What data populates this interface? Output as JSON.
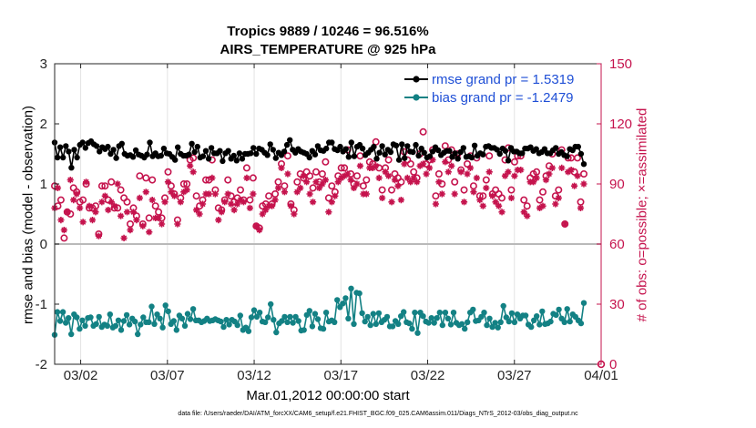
{
  "chart_data": {
    "type": "line",
    "title_line1": "Tropics 9889 / 10246 = 96.516%",
    "title_line2": "AIRS_TEMPERATURE @ 925 hPa",
    "xlabel": "Mar.01,2012 00:00:00 start",
    "ylabel_left": "rmse and bias (model - observation)",
    "ylabel_right": "# of obs: o=possible; ×=assimilated",
    "footnote": "data file: /Users/raeder/DAI/ATM_forcXX/CAM6_setup/f.e21.FHIST_BGC.f09_025.CAM6assim.011/Diags_NTrS_2012-03/obs_diag_output.nc",
    "x_range": [
      0.5,
      31.0
    ],
    "ylim_left": [
      -2,
      3
    ],
    "ylim_right": [
      0,
      150
    ],
    "x_tick_positions": [
      2,
      7,
      12,
      17,
      22,
      27,
      32
    ],
    "x_tick_labels": [
      "03/02",
      "03/07",
      "03/12",
      "03/17",
      "03/22",
      "03/27",
      "04/01"
    ],
    "y_left_ticks": [
      "-2",
      "-1",
      "0",
      "1",
      "2",
      "3"
    ],
    "y_right_ticks": [
      "0",
      "30",
      "60",
      "90",
      "120",
      "150"
    ],
    "legend": [
      {
        "label": "rmse grand pr = 1.5319",
        "color": "#000000"
      },
      {
        "label": "bias grand pr = -1.2479",
        "color": "#138184"
      }
    ],
    "legend_placement": "top-right",
    "colors": {
      "rmse": "#000000",
      "bias": "#138184",
      "obs": "#c5134d",
      "zero_line": "#b9b9b9",
      "legend_text": "#1f4fd6"
    },
    "series": [
      {
        "name": "rmse",
        "values": [
          1.69,
          1.44,
          1.61,
          1.44,
          1.63,
          1.54,
          1.27,
          1.57,
          1.44,
          1.65,
          1.69,
          1.6,
          1.68,
          1.71,
          1.66,
          1.63,
          1.54,
          1.61,
          1.58,
          1.62,
          1.5,
          1.57,
          1.43,
          1.63,
          1.67,
          1.5,
          1.47,
          1.48,
          1.45,
          1.56,
          1.49,
          1.47,
          1.44,
          1.49,
          1.69,
          1.46,
          1.51,
          1.46,
          1.47,
          1.59,
          1.51,
          1.5,
          1.45,
          1.4,
          1.61,
          1.5,
          1.47,
          1.47,
          1.49,
          1.67,
          1.53,
          1.62,
          1.44,
          1.46,
          1.55,
          1.42,
          1.6,
          1.51,
          1.51,
          1.55,
          1.38,
          1.51,
          1.55,
          1.42,
          1.47,
          1.39,
          1.51,
          1.42,
          1.5,
          1.5,
          1.51,
          1.6,
          1.5,
          1.59,
          1.57,
          1.52,
          1.48,
          1.66,
          1.57,
          1.43,
          1.52,
          1.48,
          1.54,
          1.65,
          1.73,
          1.57,
          1.52,
          1.58,
          1.54,
          1.52,
          1.5,
          1.44,
          1.55,
          1.49,
          1.63,
          1.56,
          1.55,
          1.59,
          1.69,
          1.69,
          1.58,
          1.56,
          1.62,
          1.54,
          1.58,
          1.45,
          1.69,
          1.46,
          1.62,
          1.65,
          1.59,
          1.48,
          1.52,
          1.57,
          1.62,
          1.42,
          1.52,
          1.63,
          1.49,
          1.57,
          1.53,
          1.66,
          1.64,
          1.4,
          1.66,
          1.43,
          1.63,
          1.54,
          1.53,
          1.65,
          1.47,
          1.59,
          1.52,
          1.44,
          1.46,
          1.54,
          1.61,
          1.56,
          1.48,
          1.52,
          1.55,
          1.55,
          1.45,
          1.51,
          1.42,
          1.53,
          1.6,
          1.45,
          1.46,
          1.44,
          1.64,
          1.47,
          1.51,
          1.49,
          1.62,
          1.63,
          1.6,
          1.6,
          1.57,
          1.5,
          1.59,
          1.55,
          1.39,
          1.6,
          1.54,
          1.54,
          1.51,
          1.51,
          1.59,
          1.59,
          1.61,
          1.55,
          1.58,
          1.51,
          1.53,
          1.58,
          1.51,
          1.51,
          1.56,
          1.6,
          1.5,
          1.53,
          1.48,
          1.46,
          1.58,
          1.56,
          1.62,
          1.62,
          1.5,
          1.33
        ]
      },
      {
        "name": "bias",
        "values": [
          -1.51,
          -1.13,
          -1.28,
          -1.13,
          -1.31,
          -1.23,
          -1.5,
          -1.17,
          -1.22,
          -1.41,
          -1.27,
          -1.36,
          -1.23,
          -1.22,
          -1.36,
          -1.33,
          -1.21,
          -1.38,
          -1.34,
          -1.36,
          -1.17,
          -1.39,
          -1.36,
          -1.27,
          -1.43,
          -1.28,
          -1.18,
          -1.34,
          -1.24,
          -1.29,
          -1.5,
          -1.34,
          -1.22,
          -1.3,
          -1.3,
          -1.04,
          -1.33,
          -1.17,
          -1.24,
          -1.39,
          -1.02,
          -1.12,
          -1.33,
          -1.28,
          -1.43,
          -1.19,
          -1.24,
          -1.36,
          -1.16,
          -1.25,
          -1.08,
          -1.27,
          -1.27,
          -1.3,
          -1.28,
          -1.24,
          -1.28,
          -1.27,
          -1.25,
          -1.27,
          -1.29,
          -1.38,
          -1.26,
          -1.34,
          -1.26,
          -1.29,
          -1.35,
          -1.19,
          -1.43,
          -1.39,
          -1.45,
          -1.22,
          -1.1,
          -1.21,
          -1.14,
          -1.29,
          -1.3,
          -1.22,
          -1.0,
          -1.26,
          -1.47,
          -1.32,
          -1.28,
          -1.21,
          -1.3,
          -1.21,
          -1.31,
          -1.21,
          -1.28,
          -1.44,
          -1.43,
          -1.18,
          -1.11,
          -1.37,
          -1.16,
          -1.25,
          -1.4,
          -1.41,
          -1.14,
          -1.29,
          -1.27,
          -1.3,
          -0.93,
          -1.05,
          -0.99,
          -0.9,
          -1.24,
          -0.74,
          -1.33,
          -0.81,
          -0.82,
          -1.15,
          -1.29,
          -1.21,
          -1.35,
          -1.16,
          -1.33,
          -1.15,
          -1.3,
          -1.26,
          -1.21,
          -1.37,
          -1.37,
          -1.28,
          -1.33,
          -1.2,
          -1.13,
          -1.3,
          -1.32,
          -1.41,
          -1.14,
          -1.48,
          -1.14,
          -1.2,
          -1.29,
          -1.31,
          -1.23,
          -1.31,
          -1.23,
          -1.14,
          -1.35,
          -1.14,
          -1.24,
          -1.34,
          -1.14,
          -1.31,
          -1.35,
          -1.33,
          -1.41,
          -1.3,
          -1.14,
          -1.09,
          -1.28,
          -1.27,
          -1.21,
          -1.14,
          -1.35,
          -1.24,
          -1.38,
          -1.31,
          -1.39,
          -1.3,
          -1.03,
          -1.22,
          -1.29,
          -1.15,
          -1.3,
          -1.17,
          -1.24,
          -1.19,
          -1.19,
          -1.34,
          -1.38,
          -1.27,
          -1.2,
          -1.34,
          -1.12,
          -1.33,
          -1.32,
          -1.29,
          -1.16,
          -1.18,
          -1.09,
          -1.24,
          -1.3,
          -1.08,
          -1.29,
          -1.17,
          -1.21,
          -1.27,
          -1.32,
          -0.98
        ]
      },
      {
        "name": "obs_possible",
        "marker": "o",
        "values": [
          89,
          79,
          82,
          63,
          76,
          75,
          88,
          86,
          81,
          82,
          90,
          78,
          78,
          79,
          65,
          89,
          89,
          82,
          91,
          78,
          78,
          87,
          83,
          81,
          70,
          78,
          74,
          94,
          70,
          93,
          73,
          92,
          79,
          76,
          73,
          83,
          96,
          89,
          85,
          72,
          83,
          90,
          90,
          102,
          103,
          84,
          79,
          82,
          92,
          92,
          102,
          87,
          78,
          77,
          82,
          92,
          84,
          81,
          83,
          87,
          82,
          98,
          82,
          93,
          69,
          68,
          79,
          80,
          84,
          80,
          85,
          91,
          100,
          89,
          104,
          80,
          77,
          91,
          95,
          93,
          96,
          94,
          88,
          96,
          91,
          95,
          101,
          83,
          89,
          86,
          94,
          98,
          98,
          107,
          95,
          90,
          94,
          104,
          89,
          92,
          101,
          100,
          111,
          98,
          87,
          98,
          102,
          87,
          95,
          93,
          91,
          106,
          102,
          100,
          96,
          93,
          105,
          116,
          100,
          102,
          107,
          84,
          95,
          90,
          109,
          102,
          107,
          91,
          105,
          97,
          87,
          100,
          104,
          89,
          103,
          84,
          84,
          92,
          104,
          85,
          87,
          85,
          83,
          102,
          108,
          87,
          101,
          104,
          104,
          82,
          79,
          93,
          95,
          96,
          82,
          86,
          94,
          99,
          105,
          84,
          87,
          107,
          70,
          103,
          103,
          96,
          103,
          81,
          95
        ]
      },
      {
        "name": "obs_assimilated",
        "marker": "*",
        "values": [
          78,
          88,
          72,
          67,
          76,
          92,
          82,
          85,
          78,
          71,
          91,
          79,
          72,
          76,
          64,
          81,
          84,
          77,
          81,
          79,
          90,
          74,
          63,
          76,
          67,
          76,
          72,
          83,
          69,
          86,
          66,
          82,
          73,
          73,
          70,
          81,
          91,
          86,
          84,
          70,
          81,
          86,
          87,
          99,
          96,
          77,
          75,
          80,
          85,
          85,
          93,
          85,
          72,
          76,
          81,
          85,
          80,
          77,
          80,
          82,
          81,
          93,
          78,
          85,
          69,
          67,
          75,
          77,
          79,
          79,
          82,
          88,
          98,
          86,
          95,
          79,
          75,
          86,
          88,
          94,
          91,
          85,
          81,
          91,
          88,
          90,
          92,
          76,
          81,
          84,
          91,
          93,
          94,
          95,
          92,
          88,
          90,
          99,
          85,
          85,
          98,
          98,
          99,
          93,
          83,
          96,
          94,
          81,
          92,
          89,
          82,
          100,
          93,
          91,
          93,
          91,
          99,
          100,
          95,
          98,
          102,
          80,
          91,
          85,
          101,
          96,
          99,
          85,
          103,
          96,
          81,
          95,
          98,
          86,
          93,
          82,
          79,
          88,
          96,
          84,
          81,
          79,
          76,
          94,
          96,
          83,
          94,
          97,
          97,
          76,
          74,
          91,
          91,
          93,
          78,
          79,
          92,
          95,
          98,
          80,
          83,
          98,
          70,
          96,
          97,
          89,
          94,
          78,
          90
        ]
      }
    ]
  }
}
